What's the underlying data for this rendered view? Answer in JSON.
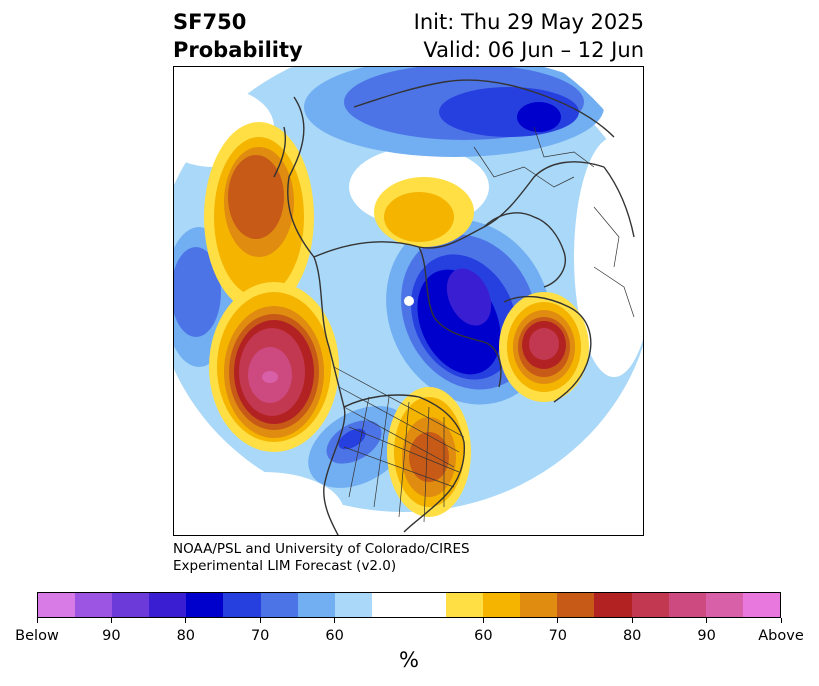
{
  "header": {
    "variable": "SF750",
    "product": "Probability",
    "init": "Init: Thu 29 May 2025",
    "valid": "Valid: 06 Jun – 12 Jun"
  },
  "credit": {
    "line1": "NOAA/PSL and University of Colorado/CIRES",
    "line2": "Experimental LIM Forecast (v2.0)"
  },
  "colorbar": {
    "colors": [
      "#d97be6",
      "#9c55e2",
      "#6b3ad9",
      "#3a1fd2",
      "#0000cd",
      "#2640e0",
      "#4d74e6",
      "#72aef2",
      "#a9d8f8",
      "#ffffff",
      "#ffffff",
      "#ffdf44",
      "#f4b400",
      "#e08c10",
      "#c85a17",
      "#b22222",
      "#c23850",
      "#cc4a80",
      "#d860a8",
      "#e877de"
    ],
    "labels": [
      "Below",
      "90",
      "80",
      "70",
      "60",
      "60",
      "70",
      "80",
      "90",
      "Above"
    ],
    "unit": "%"
  },
  "map": {
    "projection": "north-polar-stereographic",
    "negative_anomaly_regions": [
      "Greenland / Baffin Bay",
      "Northern Siberia / Arctic coast",
      "Southwestern United States",
      "Northeast Pacific (west edge)"
    ],
    "positive_anomaly_regions": [
      "Gulf of Alaska / Northeast Pacific",
      "Eastern United States",
      "Western Europe / North Atlantic",
      "Northern Alaska",
      "Eastern Pacific off Alaska"
    ]
  }
}
